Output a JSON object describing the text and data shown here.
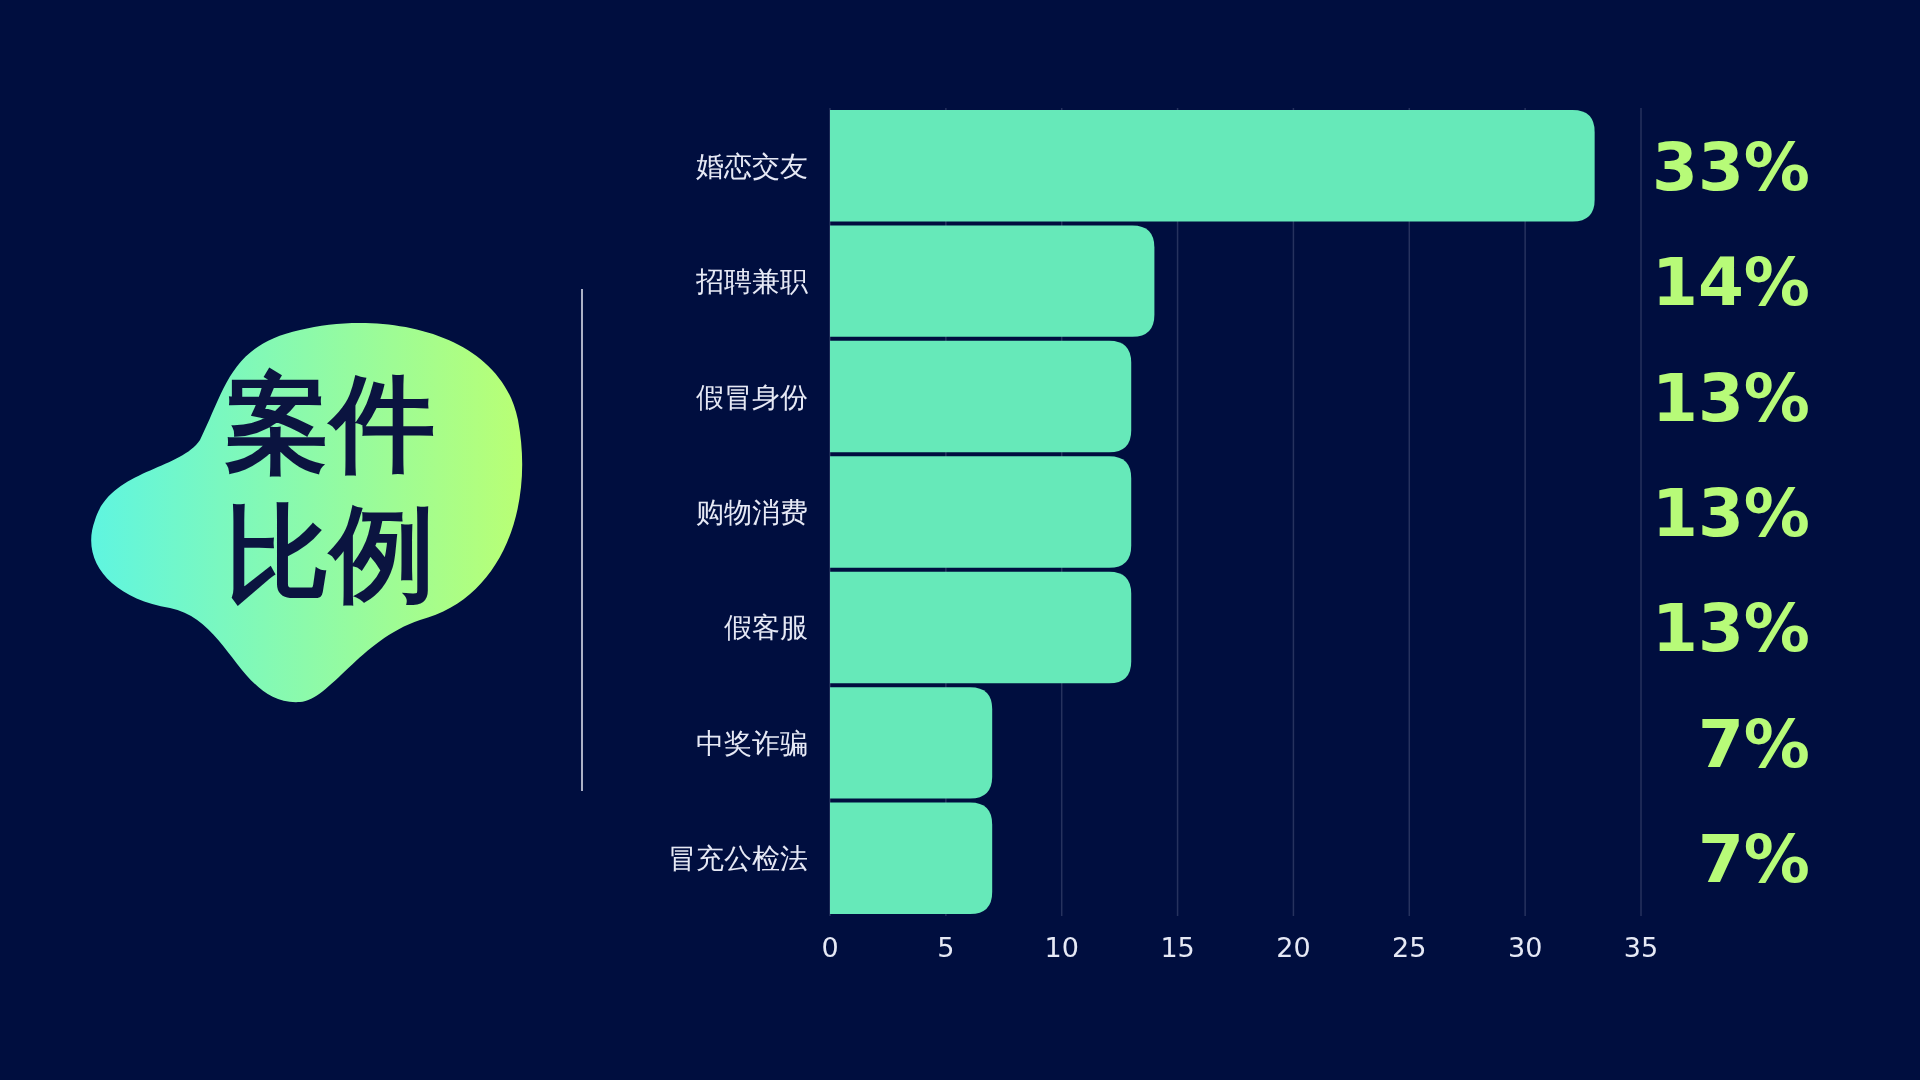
{
  "chart_data": {
    "type": "bar",
    "orientation": "horizontal",
    "title": "案件比例",
    "categories": [
      "婚恋交友",
      "招聘兼职",
      "假冒身份",
      "购物消费",
      "假客服",
      "中奖诈骗",
      "冒充公检法"
    ],
    "values": [
      33,
      14,
      13,
      13,
      13,
      7,
      7
    ],
    "color": "#66e9b9",
    "value_labels": [
      "33%",
      "14%",
      "13%",
      "13%",
      "13%",
      "7%",
      "7%"
    ],
    "xlim": [
      0,
      35
    ],
    "xticks": [
      0,
      5,
      10,
      15,
      20,
      25,
      30,
      35
    ],
    "grid": "x"
  }
}
